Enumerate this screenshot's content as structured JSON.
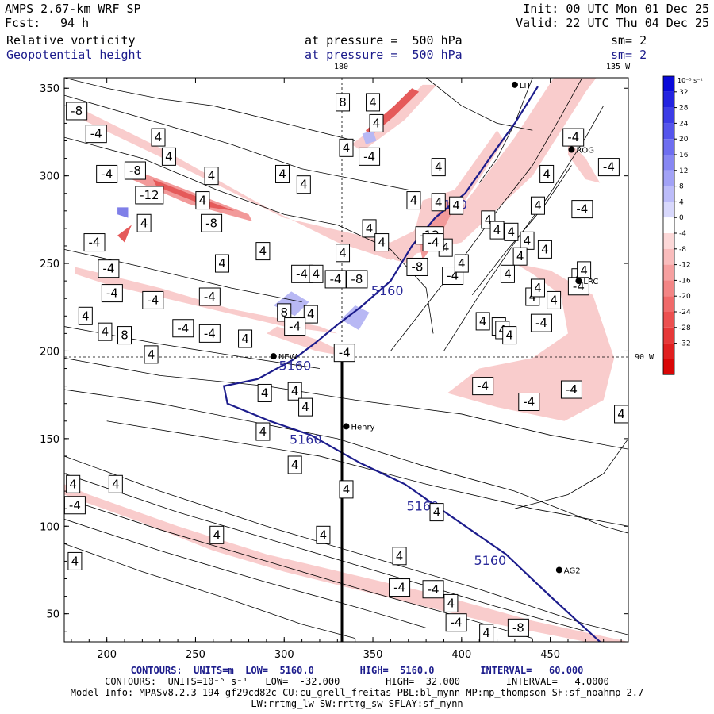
{
  "header": {
    "model": "AMPS 2.67-km WRF SP",
    "fcst_label": "Fcst:",
    "fcst_value": "94 h",
    "init": "Init: 00 UTC Mon 01 Dec 25",
    "valid": "Valid: 22 UTC Thu 04 Dec 25",
    "field1": "Relative vorticity",
    "field1_level": "at pressure =  500 hPa",
    "field1_sm": "sm= 2",
    "field2": "Geopotential height",
    "field2_level": "at pressure =  500 hPa",
    "field2_sm": "sm= 2"
  },
  "map_labels": {
    "lon_180": "180",
    "lon_135w": "135 W",
    "lon_90w": "90 W",
    "stations": [
      "LIT",
      "ROG",
      "LRC",
      "NEW",
      "Henry",
      "AG2"
    ]
  },
  "footer": {
    "line1": "CONTOURS:  UNITS=m  LOW=  5160.0        HIGH=  5160.0        INTERVAL=   60.000",
    "line2": "CONTOURS:  UNITS=10⁻⁵ s⁻¹   LOW=  -32.000        HIGH=  32.000        INTERVAL=   4.0000",
    "line3": "Model Info: MPASv8.2.3-194-gf29cd82c CU:cu_grell_freitas PBL:bl_mynn MP:mp_thompson SF:sf_noahmp 2.7",
    "line4": "LW:rrtmg_lw SW:rrtmg_sw SFLAY:sf_mynn"
  },
  "chart_data": {
    "type": "heatmap",
    "title": "",
    "xlabel": "",
    "ylabel": "",
    "xlim": [
      176,
      494
    ],
    "ylim": [
      34,
      356
    ],
    "x_ticks": [
      200,
      250,
      300,
      350,
      400,
      450
    ],
    "y_ticks": [
      50,
      100,
      150,
      200,
      250,
      300,
      350
    ],
    "colorbar": {
      "unit_label": "10⁻⁵ s⁻¹",
      "levels": [
        36,
        32,
        28,
        24,
        20,
        16,
        12,
        8,
        4,
        0,
        -4,
        -8,
        -12,
        -16,
        -20,
        -24,
        -28,
        -32,
        -36
      ],
      "tick_labels": [
        "32",
        "28",
        "24",
        "20",
        "16",
        "12",
        "8",
        "4",
        "0",
        "-4",
        "-8",
        "-12",
        "-16",
        "-20",
        "-24",
        "-28",
        "-32"
      ],
      "colors": [
        "#0a0ad9",
        "#2323e0",
        "#3c3ce6",
        "#5555ec",
        "#6e6ef0",
        "#8787f3",
        "#a2a2f6",
        "#bcbcf9",
        "#d8d8fc",
        "#ffffff",
        "#fcd8d8",
        "#f9bcbc",
        "#f6a0a0",
        "#f38585",
        "#f06a6a",
        "#ec5050",
        "#e63838",
        "#e01f1f",
        "#d90606"
      ]
    },
    "height_contour": {
      "label": "5160",
      "points": [
        [
          443,
          351
        ],
        [
          430,
          330
        ],
        [
          420,
          316
        ],
        [
          402,
          290
        ],
        [
          385,
          276
        ],
        [
          372,
          260
        ],
        [
          360,
          240
        ],
        [
          343,
          225
        ],
        [
          330,
          215
        ],
        [
          318,
          205
        ],
        [
          305,
          195
        ],
        [
          285,
          184
        ],
        [
          266,
          180
        ],
        [
          268,
          170
        ],
        [
          292,
          160
        ],
        [
          315,
          152
        ],
        [
          343,
          136
        ],
        [
          368,
          124
        ],
        [
          385,
          112
        ],
        [
          405,
          98
        ],
        [
          425,
          84
        ],
        [
          450,
          60
        ],
        [
          478,
          34
        ]
      ],
      "labels_at": [
        [
          349,
          232
        ],
        [
          297,
          189
        ],
        [
          303,
          147
        ],
        [
          369,
          109
        ],
        [
          407,
          78
        ],
        [
          385,
          281
        ]
      ]
    },
    "vorticity_labels": [
      {
        "x": 183,
        "y": 337,
        "v": "-8"
      },
      {
        "x": 194,
        "y": 324,
        "v": "-4"
      },
      {
        "x": 229,
        "y": 322,
        "v": "4"
      },
      {
        "x": 235,
        "y": 311,
        "v": "4"
      },
      {
        "x": 200,
        "y": 301,
        "v": "-4"
      },
      {
        "x": 216,
        "y": 303,
        "v": "-8"
      },
      {
        "x": 224,
        "y": 289,
        "v": "-12"
      },
      {
        "x": 254,
        "y": 286,
        "v": "4"
      },
      {
        "x": 259,
        "y": 300,
        "v": "4"
      },
      {
        "x": 259,
        "y": 273,
        "v": "-8"
      },
      {
        "x": 221,
        "y": 273,
        "v": "4"
      },
      {
        "x": 193,
        "y": 262,
        "v": "-4"
      },
      {
        "x": 201,
        "y": 247,
        "v": "-4"
      },
      {
        "x": 265,
        "y": 250,
        "v": "4"
      },
      {
        "x": 288,
        "y": 257,
        "v": "4"
      },
      {
        "x": 203,
        "y": 233,
        "v": "-4"
      },
      {
        "x": 226,
        "y": 229,
        "v": "-4"
      },
      {
        "x": 258,
        "y": 231,
        "v": "-4"
      },
      {
        "x": 188,
        "y": 220,
        "v": "4"
      },
      {
        "x": 199,
        "y": 211,
        "v": "4"
      },
      {
        "x": 210,
        "y": 209,
        "v": "8"
      },
      {
        "x": 243,
        "y": 213,
        "v": "-4"
      },
      {
        "x": 258,
        "y": 210,
        "v": "-4"
      },
      {
        "x": 278,
        "y": 207,
        "v": "4"
      },
      {
        "x": 225,
        "y": 198,
        "v": "4"
      },
      {
        "x": 300,
        "y": 222,
        "v": "8"
      },
      {
        "x": 315,
        "y": 221,
        "v": "4"
      },
      {
        "x": 306,
        "y": 214,
        "v": "-4"
      },
      {
        "x": 310,
        "y": 244,
        "v": "-4"
      },
      {
        "x": 329,
        "y": 241,
        "v": "-4"
      },
      {
        "x": 341,
        "y": 241,
        "v": "-8"
      },
      {
        "x": 318,
        "y": 244,
        "v": "4"
      },
      {
        "x": 333,
        "y": 256,
        "v": "4"
      },
      {
        "x": 299,
        "y": 301,
        "v": "4"
      },
      {
        "x": 311,
        "y": 295,
        "v": "4"
      },
      {
        "x": 335,
        "y": 316,
        "v": "4"
      },
      {
        "x": 348,
        "y": 311,
        "v": "-4"
      },
      {
        "x": 333,
        "y": 342,
        "v": "8"
      },
      {
        "x": 350,
        "y": 342,
        "v": "4"
      },
      {
        "x": 352,
        "y": 330,
        "v": "4"
      },
      {
        "x": 348,
        "y": 270,
        "v": "4"
      },
      {
        "x": 355,
        "y": 262,
        "v": "4"
      },
      {
        "x": 375,
        "y": 248,
        "v": "-8"
      },
      {
        "x": 382,
        "y": 266,
        "v": "-12"
      },
      {
        "x": 373,
        "y": 286,
        "v": "4"
      },
      {
        "x": 397,
        "y": 283,
        "v": "4"
      },
      {
        "x": 387,
        "y": 285,
        "v": "4"
      },
      {
        "x": 387,
        "y": 305,
        "v": "4"
      },
      {
        "x": 391,
        "y": 259,
        "v": "4"
      },
      {
        "x": 395,
        "y": 243,
        "v": "-4"
      },
      {
        "x": 400,
        "y": 250,
        "v": "4"
      },
      {
        "x": 384,
        "y": 262,
        "v": "-4"
      },
      {
        "x": 415,
        "y": 275,
        "v": "4"
      },
      {
        "x": 420,
        "y": 269,
        "v": "4"
      },
      {
        "x": 428,
        "y": 268,
        "v": "4"
      },
      {
        "x": 437,
        "y": 263,
        "v": "4"
      },
      {
        "x": 443,
        "y": 283,
        "v": "4"
      },
      {
        "x": 448,
        "y": 301,
        "v": "4"
      },
      {
        "x": 468,
        "y": 281,
        "v": "-4"
      },
      {
        "x": 447,
        "y": 258,
        "v": "4"
      },
      {
        "x": 433,
        "y": 254,
        "v": "4"
      },
      {
        "x": 426,
        "y": 244,
        "v": "4"
      },
      {
        "x": 452,
        "y": 229,
        "v": "4"
      },
      {
        "x": 466,
        "y": 242,
        "v": "4"
      },
      {
        "x": 469,
        "y": 246,
        "v": "4"
      },
      {
        "x": 466,
        "y": 237,
        "v": "-4"
      },
      {
        "x": 440,
        "y": 231,
        "v": "4"
      },
      {
        "x": 443,
        "y": 236,
        "v": "4"
      },
      {
        "x": 412,
        "y": 217,
        "v": "4"
      },
      {
        "x": 421,
        "y": 214,
        "v": "4"
      },
      {
        "x": 423,
        "y": 212,
        "v": "4"
      },
      {
        "x": 427,
        "y": 209,
        "v": "4"
      },
      {
        "x": 445,
        "y": 216,
        "v": "-4"
      },
      {
        "x": 483,
        "y": 305,
        "v": "-4"
      },
      {
        "x": 463,
        "y": 322,
        "v": "-4"
      },
      {
        "x": 490,
        "y": 164,
        "v": "4"
      },
      {
        "x": 412,
        "y": 180,
        "v": "-4"
      },
      {
        "x": 438,
        "y": 171,
        "v": "-4"
      },
      {
        "x": 462,
        "y": 178,
        "v": "-4"
      },
      {
        "x": 334,
        "y": 199,
        "v": "-4"
      },
      {
        "x": 289,
        "y": 176,
        "v": "4"
      },
      {
        "x": 306,
        "y": 177,
        "v": "4"
      },
      {
        "x": 312,
        "y": 168,
        "v": "4"
      },
      {
        "x": 288,
        "y": 154,
        "v": "4"
      },
      {
        "x": 306,
        "y": 135,
        "v": "4"
      },
      {
        "x": 335,
        "y": 121,
        "v": "4"
      },
      {
        "x": 386,
        "y": 108,
        "v": "4"
      },
      {
        "x": 181,
        "y": 124,
        "v": "4"
      },
      {
        "x": 182,
        "y": 112,
        "v": "-4"
      },
      {
        "x": 205,
        "y": 124,
        "v": "4"
      },
      {
        "x": 182,
        "y": 80,
        "v": "4"
      },
      {
        "x": 262,
        "y": 95,
        "v": "4"
      },
      {
        "x": 322,
        "y": 95,
        "v": "4"
      },
      {
        "x": 365,
        "y": 83,
        "v": "4"
      },
      {
        "x": 365,
        "y": 65,
        "v": "-4"
      },
      {
        "x": 384,
        "y": 64,
        "v": "-4"
      },
      {
        "x": 394,
        "y": 56,
        "v": "4"
      },
      {
        "x": 397,
        "y": 45,
        "v": "-4"
      },
      {
        "x": 432,
        "y": 42,
        "v": "-8"
      },
      {
        "x": 414,
        "y": 39,
        "v": "4"
      }
    ],
    "stations": [
      {
        "x": 430,
        "y": 352,
        "name": "LIT"
      },
      {
        "x": 462,
        "y": 315,
        "name": "ROG"
      },
      {
        "x": 466,
        "y": 240,
        "name": "LRC"
      },
      {
        "x": 294,
        "y": 197,
        "name": "NEW"
      },
      {
        "x": 335,
        "y": 157,
        "name": "Henry"
      },
      {
        "x": 455,
        "y": 75,
        "name": "AG2"
      }
    ]
  }
}
